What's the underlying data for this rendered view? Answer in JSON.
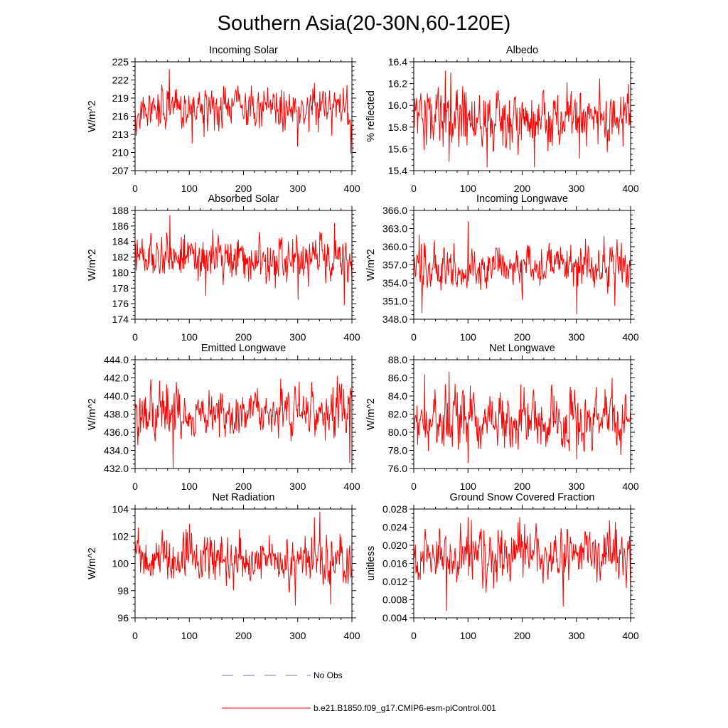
{
  "title": "Southern Asia(20-30N,60-120E)",
  "legend": [
    {
      "label": "No Obs",
      "style": "dashed",
      "color": "#7777cc"
    },
    {
      "label": "b.e21.B1850.f09_g17.CMIP6-esm-piControl.001",
      "style": "solid",
      "color": "#ff0000"
    }
  ],
  "chart_data": [
    {
      "type": "line",
      "title": "Incoming Solar",
      "ylabel": "W/m^2",
      "xlim": [
        0,
        400
      ],
      "ylim": [
        207,
        225
      ],
      "xticks": [
        "0",
        "100",
        "200",
        "300",
        "400"
      ],
      "yticks": [
        "207",
        "210",
        "213",
        "216",
        "219",
        "222",
        "225"
      ],
      "series": {
        "name": "b.e21.B1850.f09_g17.CMIP6-esm-piControl.001",
        "n": 400,
        "mean": 217.2,
        "spread": 1.7,
        "min": 209.8,
        "max": 223.8,
        "spikes": [
          [
            63,
            223.8
          ],
          [
            397,
            209.8
          ],
          [
            299,
            211.0
          ],
          [
            105,
            211.5
          ]
        ]
      }
    },
    {
      "type": "line",
      "title": "Albedo",
      "ylabel": "% reflected",
      "xlim": [
        0,
        400
      ],
      "ylim": [
        15.4,
        16.4
      ],
      "xticks": [
        "0",
        "100",
        "200",
        "300",
        "400"
      ],
      "yticks": [
        "15.4",
        "15.6",
        "15.8",
        "16.0",
        "16.2",
        "16.4"
      ],
      "series": {
        "name": "b.e21.B1850.f09_g17.CMIP6-esm-piControl.001",
        "n": 400,
        "mean": 15.88,
        "spread": 0.14,
        "min": 15.43,
        "max": 16.32,
        "spikes": [
          [
            58,
            16.32
          ],
          [
            68,
            16.3
          ],
          [
            135,
            15.43
          ],
          [
            222,
            15.43
          ],
          [
            65,
            15.48
          ]
        ]
      }
    },
    {
      "type": "line",
      "title": "Absorbed Solar",
      "ylabel": "W/m^2",
      "xlim": [
        0,
        400
      ],
      "ylim": [
        174,
        188
      ],
      "xticks": [
        "0",
        "100",
        "200",
        "300",
        "400"
      ],
      "yticks": [
        "174",
        "176",
        "178",
        "180",
        "182",
        "184",
        "186",
        "188"
      ],
      "series": {
        "name": "b.e21.B1850.f09_g17.CMIP6-esm-piControl.001",
        "n": 400,
        "mean": 181.8,
        "spread": 1.4,
        "min": 175.8,
        "max": 187.4,
        "spikes": [
          [
            64,
            187.4
          ],
          [
            385,
            175.8
          ],
          [
            367,
            186.4
          ],
          [
            300,
            176.5
          ],
          [
            130,
            177.0
          ]
        ]
      }
    },
    {
      "type": "line",
      "title": "Incoming Longwave",
      "ylabel": "W/m^2",
      "xlim": [
        0,
        400
      ],
      "ylim": [
        348,
        366
      ],
      "xticks": [
        "0",
        "100",
        "200",
        "300",
        "400"
      ],
      "yticks": [
        "348.0",
        "351.0",
        "354.0",
        "357.0",
        "360.0",
        "363.0",
        "366.0"
      ],
      "series": {
        "name": "b.e21.B1850.f09_g17.CMIP6-esm-piControl.001",
        "n": 400,
        "mean": 356.8,
        "spread": 1.8,
        "min": 348.8,
        "max": 364.2,
        "spikes": [
          [
            100,
            364.2
          ],
          [
            300,
            348.8
          ],
          [
            15,
            349.0
          ],
          [
            370,
            350.2
          ],
          [
            350,
            361.8
          ]
        ]
      }
    },
    {
      "type": "line",
      "title": "Emitted Longwave",
      "ylabel": "W/m^2",
      "xlim": [
        0,
        400
      ],
      "ylim": [
        432,
        444
      ],
      "xticks": [
        "0",
        "100",
        "200",
        "300",
        "400"
      ],
      "yticks": [
        "432.0",
        "434.0",
        "436.0",
        "438.0",
        "440.0",
        "442.0",
        "444.0"
      ],
      "series": {
        "name": "b.e21.B1850.f09_g17.CMIP6-esm-piControl.001",
        "n": 400,
        "mean": 438.0,
        "spread": 1.4,
        "min": 432.0,
        "max": 442.2,
        "spikes": [
          [
            70,
            432.0
          ],
          [
            395,
            432.6
          ],
          [
            372,
            442.2
          ],
          [
            268,
            441.9
          ],
          [
            45,
            441.7
          ]
        ]
      }
    },
    {
      "type": "line",
      "title": "Net Longwave",
      "ylabel": "W/m^2",
      "xlim": [
        0,
        400
      ],
      "ylim": [
        76,
        88
      ],
      "xticks": [
        "0",
        "100",
        "200",
        "300",
        "400"
      ],
      "yticks": [
        "76.0",
        "78.0",
        "80.0",
        "82.0",
        "84.0",
        "86.0",
        "88.0"
      ],
      "series": {
        "name": "b.e21.B1850.f09_g17.CMIP6-esm-piControl.001",
        "n": 400,
        "mean": 81.3,
        "spread": 1.5,
        "min": 76.6,
        "max": 86.7,
        "spikes": [
          [
            65,
            86.7
          ],
          [
            100,
            76.6
          ],
          [
            20,
            86.4
          ],
          [
            365,
            86.0
          ],
          [
            300,
            77.0
          ]
        ]
      }
    },
    {
      "type": "line",
      "title": "Net Radiation",
      "ylabel": "W/m^2",
      "xlim": [
        0,
        400
      ],
      "ylim": [
        96,
        104
      ],
      "xticks": [
        "0",
        "100",
        "200",
        "300",
        "400"
      ],
      "yticks": [
        "96",
        "98",
        "100",
        "102",
        "104"
      ],
      "series": {
        "name": "b.e21.B1850.f09_g17.CMIP6-esm-piControl.001",
        "n": 400,
        "mean": 100.2,
        "spread": 0.85,
        "min": 96.9,
        "max": 103.8,
        "spikes": [
          [
            340,
            103.8
          ],
          [
            295,
            96.9
          ],
          [
            360,
            97.0
          ],
          [
            100,
            102.9
          ],
          [
            330,
            103.4
          ]
        ]
      }
    },
    {
      "type": "line",
      "title": "Ground Snow Covered Fraction",
      "ylabel": "unitless",
      "xlim": [
        0,
        400
      ],
      "ylim": [
        0.004,
        0.028
      ],
      "xticks": [
        "0",
        "100",
        "200",
        "300",
        "400"
      ],
      "yticks": [
        "0.004",
        "0.008",
        "0.012",
        "0.016",
        "0.020",
        "0.024",
        "0.028"
      ],
      "series": {
        "name": "b.e21.B1850.f09_g17.CMIP6-esm-piControl.001",
        "n": 400,
        "mean": 0.018,
        "spread": 0.0028,
        "min": 0.0055,
        "max": 0.0265,
        "spikes": [
          [
            60,
            0.0055
          ],
          [
            275,
            0.0065
          ],
          [
            100,
            0.0262
          ],
          [
            195,
            0.0262
          ],
          [
            360,
            0.0255
          ]
        ]
      }
    }
  ]
}
